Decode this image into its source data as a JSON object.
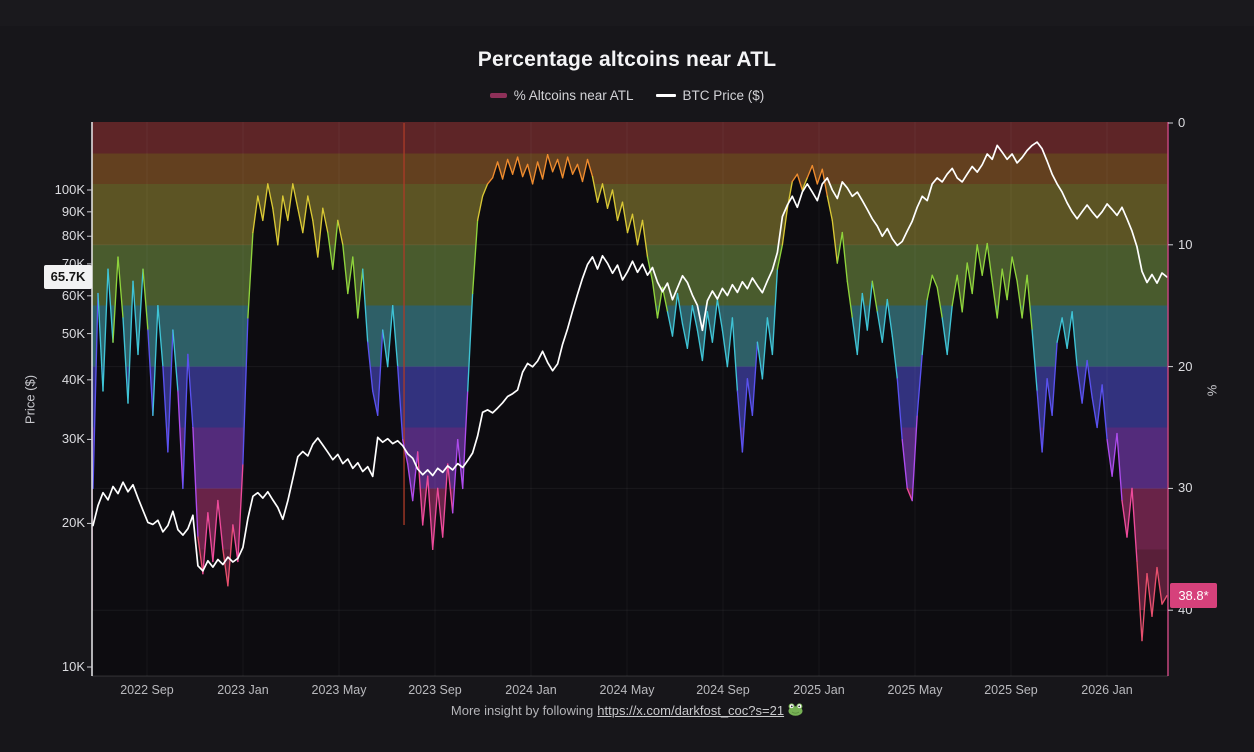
{
  "header": {
    "title": "Percentage altcoins near ATL"
  },
  "legend": {
    "items": [
      {
        "label": "% Altcoins near ATL",
        "swatch_color": "#8e3059",
        "type": "thick-dash"
      },
      {
        "label": "BTC Price ($)",
        "swatch_color": "#ffffff",
        "type": "line"
      }
    ]
  },
  "axes": {
    "left": {
      "label": "Price ($)",
      "scale": "log",
      "ticks": [
        "100K",
        "90K",
        "80K",
        "70K",
        "60K",
        "50K",
        "40K",
        "30K",
        "20K",
        "10K"
      ],
      "tick_values_k": [
        100,
        90,
        80,
        70,
        60,
        50,
        40,
        30,
        20,
        10
      ]
    },
    "right": {
      "label": "%",
      "inverted_note": "0 at top",
      "ticks": [
        "0",
        "10",
        "20",
        "30",
        "40"
      ],
      "tick_values": [
        0,
        10,
        20,
        30,
        40
      ]
    },
    "x": {
      "ticks": [
        "2022 Sep",
        "2023 Jan",
        "2023 May",
        "2023 Sep",
        "2024 Jan",
        "2024 May",
        "2024 Sep",
        "2025 Jan",
        "2025 May",
        "2025 Sep",
        "2026 Jan"
      ]
    }
  },
  "annotations": {
    "btc_price_label": "65.7K",
    "btc_badge_bg": "#f2f2f3",
    "altcoin_pct_label": "38.8*",
    "pct_badge_bg": "#d6417b"
  },
  "footer": {
    "text_prefix": "More insight by following",
    "link": "https://x.com/darkfost_coc?s=21",
    "emoji": "🐸"
  },
  "chart_data": {
    "type": "line",
    "title": "Percentage altcoins near ATL",
    "x_range": [
      "2022-06",
      "2026-03"
    ],
    "grid": "faint",
    "legend_position": "top-center",
    "left_axis": {
      "label": "Price ($)",
      "scale": "log",
      "ticks_k": [
        10,
        20,
        30,
        40,
        50,
        60,
        70,
        80,
        90,
        100
      ]
    },
    "right_axis": {
      "label": "%",
      "inverted": true,
      "ticks": [
        0,
        10,
        20,
        30,
        40
      ]
    },
    "bands": [
      {
        "from": 0,
        "to": 2.5,
        "fill": "#5e2527",
        "line": "#f05138"
      },
      {
        "from": 2.5,
        "to": 5,
        "fill": "#63401f",
        "line": "#f08c2e"
      },
      {
        "from": 5,
        "to": 10,
        "fill": "#5c5424",
        "line": "#d9c835"
      },
      {
        "from": 10,
        "to": 15,
        "fill": "#495b2d",
        "line": "#8fd43c"
      },
      {
        "from": 15,
        "to": 20,
        "fill": "#2e5f67",
        "line": "#3fc4d6"
      },
      {
        "from": 20,
        "to": 25,
        "fill": "#32327e",
        "line": "#5a52f0"
      },
      {
        "from": 25,
        "to": 30,
        "fill": "#532b7b",
        "line": "#ae4cee"
      },
      {
        "from": 30,
        "to": 35,
        "fill": "#692348",
        "line": "#ee4b9b"
      },
      {
        "from": 35,
        "to": 40,
        "fill": "#591f39",
        "line": "#e8506e"
      }
    ],
    "glitch_spike": {
      "x_frac": 0.29,
      "from_pct": 0,
      "to_pct": 33,
      "color": "#aa3b28"
    },
    "series": [
      {
        "name": "% Altcoins near ATL",
        "axis": "right",
        "unit": "%",
        "current": 38.8,
        "area_fill": "#0d0c10",
        "values": [
          30,
          14,
          22,
          12,
          18,
          11,
          16,
          23,
          13,
          19,
          12,
          17,
          24,
          15,
          20,
          27,
          17,
          22,
          30,
          19,
          25,
          34,
          37,
          32,
          36,
          31,
          35,
          38,
          33,
          36,
          28,
          16,
          9,
          6,
          8,
          5,
          7,
          10,
          6,
          8,
          5,
          7,
          9,
          6,
          8,
          11,
          7,
          9,
          12,
          8,
          10,
          14,
          11,
          16,
          12,
          18,
          22,
          24,
          17,
          20,
          15,
          20,
          26,
          28,
          31,
          27,
          33,
          29,
          35,
          30,
          34,
          28,
          32,
          26,
          30,
          22,
          14,
          8,
          6,
          5,
          4.5,
          3.2,
          4.6,
          3,
          4.2,
          2.8,
          4.4,
          3.4,
          5,
          3.2,
          4.6,
          2.6,
          4,
          3,
          4.5,
          2.8,
          4.2,
          3.4,
          4.8,
          3,
          4.4,
          6.5,
          5,
          7,
          5.5,
          8,
          6.5,
          9,
          7.5,
          10,
          8,
          11,
          13,
          16,
          13.5,
          15.5,
          17.5,
          14,
          16.5,
          18.5,
          15,
          17,
          19.5,
          15.5,
          18,
          14.5,
          17,
          20,
          16,
          22,
          27,
          21,
          24,
          18,
          21,
          16,
          19,
          12,
          10,
          7,
          4.8,
          4.2,
          5.5,
          4.5,
          3.5,
          5,
          3.8,
          6,
          8,
          11.5,
          9,
          13,
          16,
          19,
          14,
          17,
          13,
          15.5,
          18,
          14.5,
          17.5,
          21,
          26,
          30,
          31,
          24,
          19,
          14.5,
          12.5,
          13.5,
          16,
          19,
          15,
          12.5,
          15.5,
          11.5,
          14,
          10,
          12.5,
          9.9,
          13,
          16,
          12,
          14.5,
          11,
          13,
          16,
          12.5,
          17,
          22,
          27,
          21,
          24,
          18,
          16,
          18.5,
          15.5,
          20,
          23,
          19.5,
          22.5,
          25,
          21.5,
          26,
          29,
          25.5,
          31,
          34,
          30,
          36,
          42.5,
          37,
          40.5,
          36.5,
          39.5,
          38.8
        ]
      },
      {
        "name": "BTC Price ($)",
        "axis": "left",
        "unit": "K$",
        "current": 65.7,
        "color": "#ffffff",
        "values": [
          19.8,
          21.8,
          23.2,
          22.4,
          23.9,
          23.1,
          24.4,
          23.3,
          24.1,
          22.6,
          21.3,
          20.1,
          19.9,
          20.3,
          19.2,
          19.8,
          21.2,
          19.4,
          18.9,
          19.5,
          20.8,
          16.3,
          15.9,
          16.7,
          16.2,
          16.8,
          16.4,
          17.0,
          16.6,
          16.9,
          17.8,
          20.5,
          22.8,
          23.2,
          22.6,
          23.3,
          22.4,
          21.6,
          20.4,
          22.3,
          24.8,
          27.6,
          28.3,
          27.7,
          29.3,
          30.2,
          29.2,
          28.2,
          27.2,
          27.9,
          26.7,
          27.3,
          26.1,
          26.8,
          25.7,
          26.3,
          25.1,
          30.3,
          29.6,
          30.1,
          29.4,
          29.8,
          29.1,
          28.0,
          27.4,
          26.0,
          25.3,
          25.9,
          25.2,
          26.1,
          25.6,
          26.4,
          25.9,
          26.7,
          26.2,
          27.1,
          28.1,
          30.5,
          34.2,
          34.6,
          34.1,
          34.9,
          35.8,
          36.9,
          37.4,
          38.1,
          41.5,
          43.3,
          42.6,
          43.8,
          45.9,
          43.5,
          41.8,
          43.2,
          47.5,
          51.2,
          55.8,
          60.4,
          65.3,
          69.8,
          72.4,
          68.3,
          72.8,
          70.2,
          66.9,
          69.6,
          64.8,
          67.4,
          70.9,
          67.2,
          69.9,
          66.3,
          68.8,
          64.1,
          61.2,
          63.8,
          58.9,
          62.4,
          66.1,
          64.0,
          60.2,
          57.3,
          50.8,
          58.6,
          61.4,
          59.1,
          62.2,
          60.1,
          63.3,
          61.0,
          64.2,
          62.1,
          65.4,
          63.0,
          60.9,
          64.5,
          68.0,
          74,
          88,
          93,
          97,
          92,
          99,
          103,
          99,
          95,
          103,
          106,
          100,
          96,
          104,
          101,
          97,
          99,
          95,
          91,
          87,
          84,
          80,
          83,
          79,
          76.5,
          78,
          82,
          86,
          92,
          97,
          95,
          103,
          106,
          104,
          108,
          111,
          106,
          104,
          108,
          112,
          109,
          113,
          119,
          116,
          124,
          120,
          116,
          119,
          114,
          117,
          121,
          124,
          126,
          122,
          115,
          108,
          103,
          99,
          94,
          90,
          87,
          90,
          93,
          90,
          87.5,
          90,
          93.5,
          91,
          88.5,
          92,
          87,
          82,
          76,
          67.5,
          64,
          66.5,
          63.8,
          67,
          65.7
        ]
      }
    ]
  }
}
